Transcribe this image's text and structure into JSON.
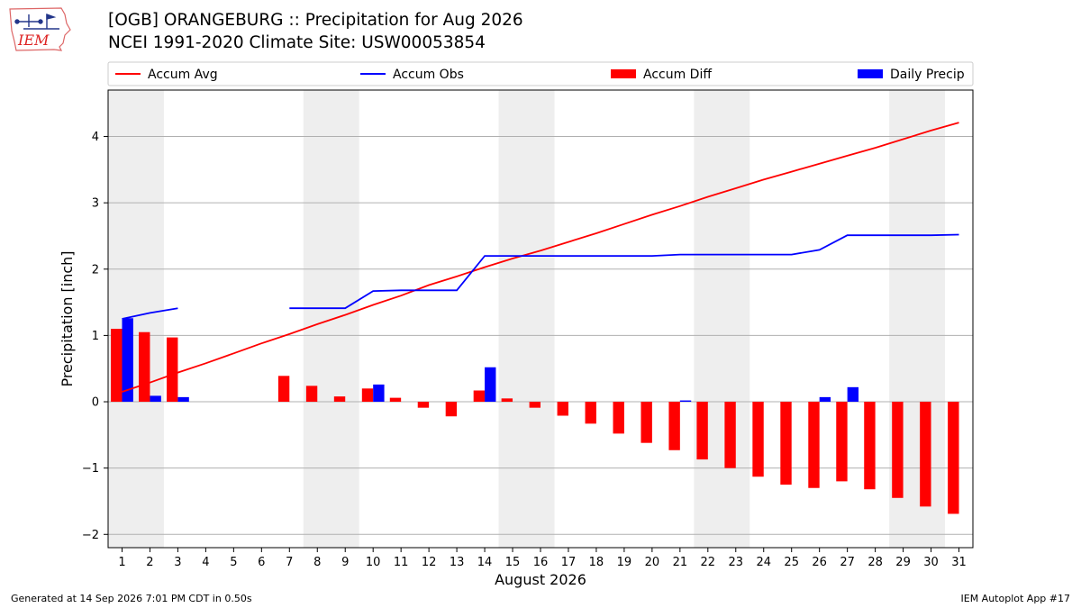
{
  "header": {
    "title_line1": "[OGB] ORANGEBURG :: Precipitation for Aug 2026",
    "title_line2": "NCEI 1991-2020 Climate Site: USW00053854"
  },
  "logo": {
    "text": "IEM",
    "icon": "iem-iowa-logo"
  },
  "footer": {
    "generated": "Generated at 14 Sep 2026 7:01 PM CDT in 0.50s",
    "app": "IEM Autoplot App #17"
  },
  "chart_data": {
    "type": "bar",
    "xlabel": "August 2026",
    "ylabel": "Precipitation [inch]",
    "xlim": [
      0.5,
      31.5
    ],
    "ylim": [
      -2.2,
      4.7
    ],
    "yticks": [
      -2,
      -1,
      0,
      1,
      2,
      3,
      4
    ],
    "ytick_labels": [
      "−2",
      "−1",
      "0",
      "1",
      "2",
      "3",
      "4"
    ],
    "x": [
      1,
      2,
      3,
      4,
      5,
      6,
      7,
      8,
      9,
      10,
      11,
      12,
      13,
      14,
      15,
      16,
      17,
      18,
      19,
      20,
      21,
      22,
      23,
      24,
      25,
      26,
      27,
      28,
      29,
      30,
      31
    ],
    "x_tick_labels": [
      "1",
      "2",
      "3",
      "4",
      "5",
      "6",
      "7",
      "8",
      "9",
      "10",
      "11",
      "12",
      "13",
      "14",
      "15",
      "16",
      "17",
      "18",
      "19",
      "20",
      "21",
      "22",
      "23",
      "24",
      "25",
      "26",
      "27",
      "28",
      "29",
      "30",
      "31"
    ],
    "grid": "horizontal",
    "weekend_shading": [
      [
        0.5,
        2.5
      ],
      [
        7.5,
        9.5
      ],
      [
        14.5,
        16.5
      ],
      [
        21.5,
        23.5
      ],
      [
        28.5,
        30.5
      ]
    ],
    "legend_placement": "top, above plot",
    "series": [
      {
        "name": "Accum Avg",
        "kind": "line",
        "color": "#ff0000",
        "values": [
          0.15,
          0.29,
          0.44,
          0.58,
          0.73,
          0.88,
          1.02,
          1.17,
          1.31,
          1.46,
          1.6,
          1.76,
          1.89,
          2.03,
          2.16,
          2.28,
          2.41,
          2.54,
          2.68,
          2.82,
          2.95,
          3.09,
          3.22,
          3.35,
          3.47,
          3.59,
          3.71,
          3.83,
          3.96,
          4.09,
          4.21
        ]
      },
      {
        "name": "Accum Obs",
        "kind": "line",
        "color": "#0000ff",
        "values": [
          1.25,
          1.34,
          1.41,
          null,
          null,
          null,
          1.41,
          1.41,
          1.41,
          1.67,
          1.68,
          1.68,
          1.68,
          2.2,
          2.2,
          2.2,
          2.2,
          2.2,
          2.2,
          2.2,
          2.22,
          2.22,
          2.22,
          2.22,
          2.22,
          2.29,
          2.51,
          2.51,
          2.51,
          2.51,
          2.52
        ]
      },
      {
        "name": "Accum Diff",
        "kind": "bar",
        "color": "#ff0000",
        "values": [
          1.1,
          1.05,
          0.97,
          null,
          null,
          null,
          0.39,
          0.24,
          0.08,
          0.2,
          0.06,
          -0.09,
          -0.22,
          0.17,
          0.05,
          -0.09,
          -0.21,
          -0.33,
          -0.48,
          -0.62,
          -0.73,
          -0.87,
          -1.0,
          -1.13,
          -1.25,
          -1.3,
          -1.2,
          -1.32,
          -1.45,
          -1.58,
          -1.69
        ]
      },
      {
        "name": "Daily Precip",
        "kind": "bar",
        "color": "#0000ff",
        "values": [
          1.26,
          0.09,
          0.07,
          null,
          null,
          null,
          0,
          0,
          0,
          0.26,
          0,
          0,
          0,
          0.52,
          0,
          0,
          0,
          0,
          0,
          0,
          0.02,
          0,
          0,
          0,
          0,
          0.07,
          0.22,
          0,
          0,
          0,
          0
        ]
      }
    ]
  }
}
